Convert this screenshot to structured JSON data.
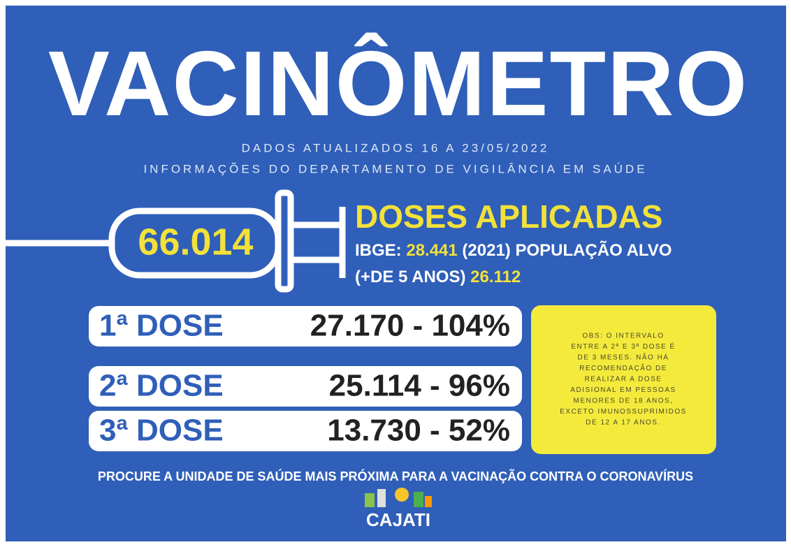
{
  "header": {
    "title": "VACINÔMETRO",
    "subtitle_lines": [
      "DADOS ATUALIZADOS 16 A 23/05/2022",
      "INFORMAÇÕES DO DEPARTAMENTO DE VIGILÂNCIA EM SAÚDE"
    ]
  },
  "summary": {
    "total": "66.014",
    "heading": "DOSES APLICADAS",
    "ibge_label": "IBGE:",
    "ibge_value": "28.441",
    "ibge_suffix": "(2021) POPULAÇÃO ALVO",
    "target_label": "(+DE 5 ANOS)",
    "target_value": "26.112"
  },
  "doses": [
    {
      "label": "1ª DOSE",
      "value": "27.170 - 104%"
    },
    {
      "label": "2ª DOSE",
      "value": "25.114 - 96%"
    },
    {
      "label": "3ª DOSE",
      "value": "13.730 - 52%"
    }
  ],
  "note": {
    "lines": [
      "OBS: O INTERVALO",
      "ENTRE A 2ª E 3ª DOSE É",
      "DE 3 MESES. NÃO HÁ",
      "RECOMENDAÇÃO DE",
      "REALIZAR A DOSE",
      "ADISIONAL EM PESSOAS",
      "MENORES DE 18 ANOS,",
      "EXCETO IMUNOSSUPRIMIDOS",
      "DE 12 A 17 ANOS."
    ]
  },
  "footer": {
    "text": "PROCURE A UNIDADE DE SAÚDE MAIS PRÓXIMA PARA A VACINAÇÃO CONTRA O CORONAVÍRUS",
    "logo": "CAJATI"
  }
}
